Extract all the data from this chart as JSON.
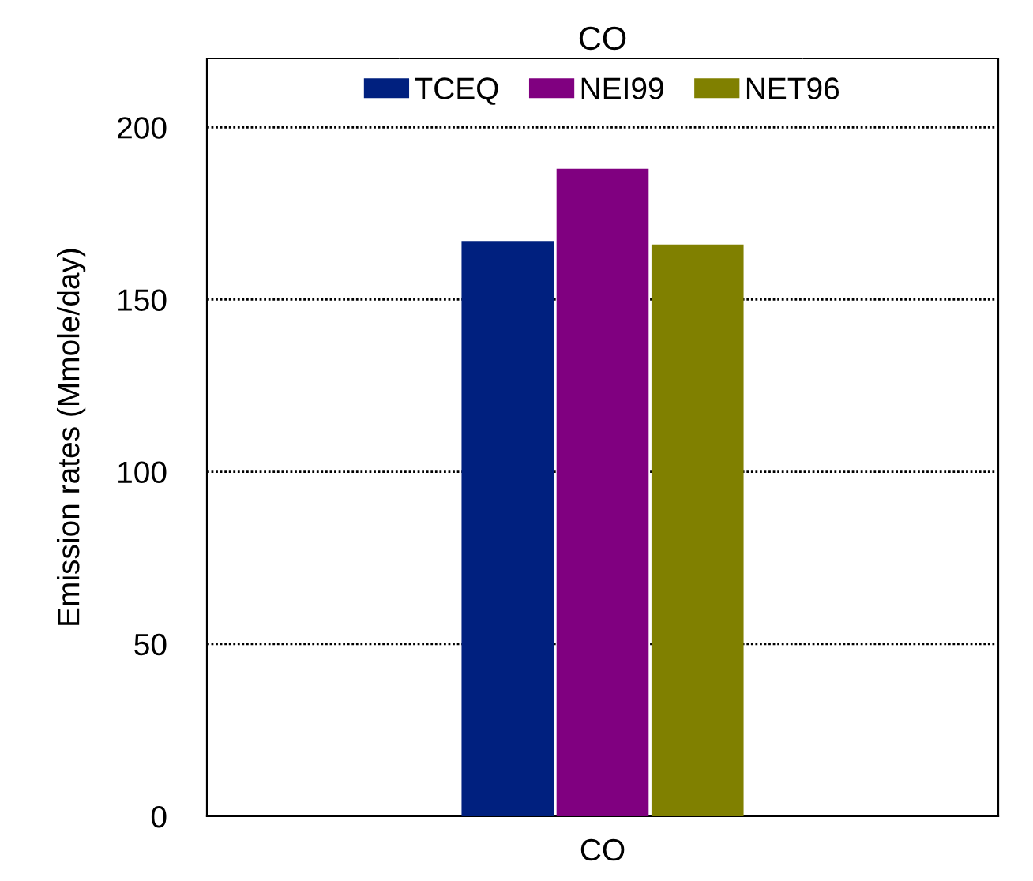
{
  "chart_data": {
    "type": "bar",
    "title": "CO",
    "ylabel": "Emission rates (Mmole/day)",
    "categories": [
      "CO"
    ],
    "series": [
      {
        "name": "TCEQ",
        "color": "#00207f",
        "values": [
          167
        ]
      },
      {
        "name": "NEI99",
        "color": "#800080",
        "values": [
          188
        ]
      },
      {
        "name": "NET96",
        "color": "#808000",
        "values": [
          166
        ]
      }
    ],
    "ylim": [
      0,
      220
    ],
    "yticks": [
      0,
      50,
      100,
      150,
      200
    ],
    "grid": "y",
    "legend": "top"
  }
}
